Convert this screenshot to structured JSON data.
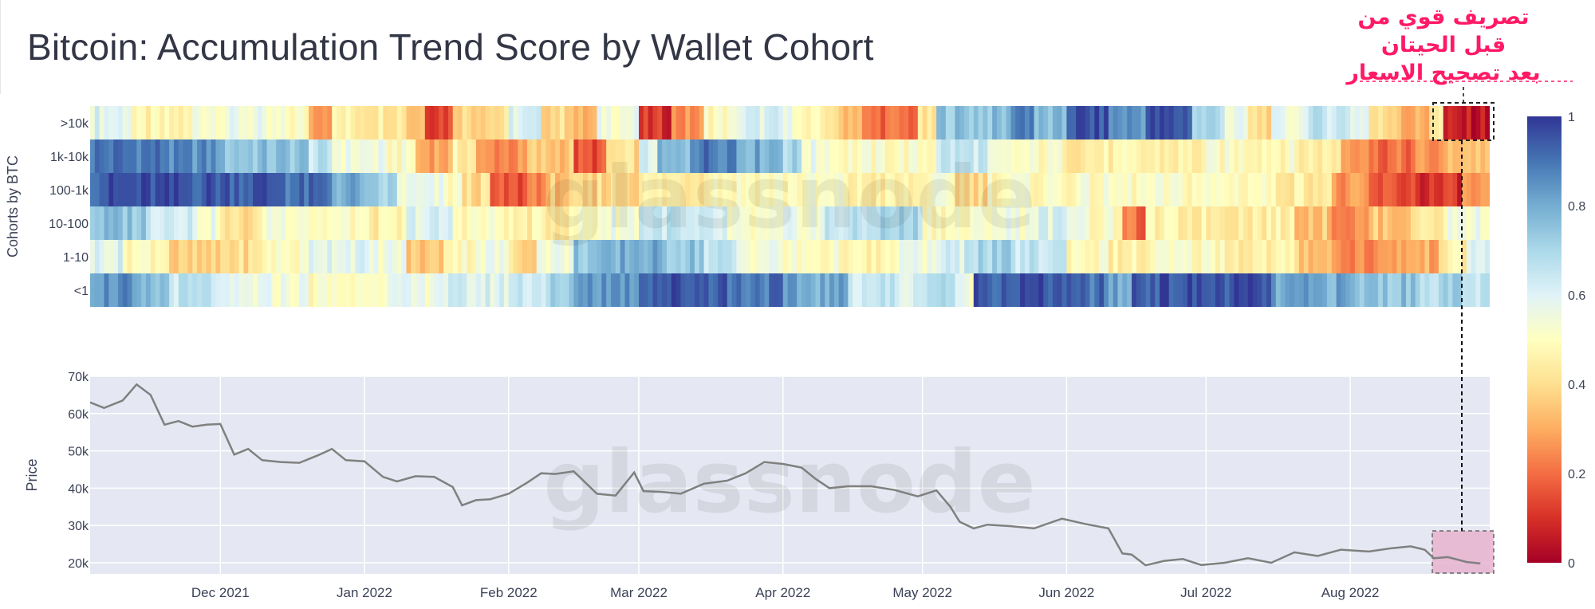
{
  "title": "Bitcoin: Accumulation Trend Score by Wallet Cohort",
  "annotation_lines": [
    "تصريف قوي من",
    "قبل الحيتان",
    "بعد تصحيح الاسعار"
  ],
  "watermark": "glassnode",
  "colors": {
    "annotation": "#ff1a66",
    "price_line": "#808080",
    "plot_bg": "#e5e8f2",
    "highlight_fill": "#e8b3cf",
    "colorscale": [
      "#a50026",
      "#d73027",
      "#f46d43",
      "#fdae61",
      "#fee090",
      "#ffffbf",
      "#e0f3f8",
      "#abd9e9",
      "#74add1",
      "#4575b4",
      "#313695"
    ]
  },
  "chart_data": [
    {
      "type": "heatmap",
      "ylabel": "Cohorts by BTC",
      "rows": [
        ">10k",
        "1k-10k",
        "100-1k",
        "10-100",
        "1-10",
        "<1"
      ],
      "x_range": [
        "2021-11-03",
        "2022-08-31"
      ],
      "colorbar": {
        "range": [
          0,
          1
        ],
        "ticks": [
          0,
          0.2,
          0.4,
          0.6,
          0.8,
          1
        ]
      },
      "segments": {
        ">10k": [
          [
            "2021-11-03",
            0.6
          ],
          [
            "2021-11-12",
            0.45
          ],
          [
            "2021-11-25",
            0.55
          ],
          [
            "2021-12-10",
            0.5
          ],
          [
            "2021-12-20",
            0.3
          ],
          [
            "2021-12-25",
            0.45
          ],
          [
            "2022-01-10",
            0.35
          ],
          [
            "2022-01-14",
            0.15
          ],
          [
            "2022-01-20",
            0.4
          ],
          [
            "2022-02-01",
            0.6
          ],
          [
            "2022-02-08",
            0.4
          ],
          [
            "2022-02-15",
            0.3
          ],
          [
            "2022-02-20",
            0.55
          ],
          [
            "2022-03-01",
            0.1
          ],
          [
            "2022-03-08",
            0.25
          ],
          [
            "2022-03-15",
            0.5
          ],
          [
            "2022-03-22",
            0.6
          ],
          [
            "2022-04-01",
            0.55
          ],
          [
            "2022-04-05",
            0.45
          ],
          [
            "2022-04-12",
            0.35
          ],
          [
            "2022-04-18",
            0.2
          ],
          [
            "2022-04-30",
            0.4
          ],
          [
            "2022-05-04",
            0.75
          ],
          [
            "2022-05-20",
            0.9
          ],
          [
            "2022-05-25",
            0.75
          ],
          [
            "2022-06-01",
            0.95
          ],
          [
            "2022-06-10",
            0.85
          ],
          [
            "2022-06-18",
            0.95
          ],
          [
            "2022-06-28",
            0.7
          ],
          [
            "2022-07-05",
            0.55
          ],
          [
            "2022-07-10",
            0.4
          ],
          [
            "2022-07-15",
            0.55
          ],
          [
            "2022-07-22",
            0.65
          ],
          [
            "2022-08-01",
            0.6
          ],
          [
            "2022-08-05",
            0.4
          ],
          [
            "2022-08-12",
            0.3
          ],
          [
            "2022-08-18",
            0.45
          ],
          [
            "2022-08-21",
            0.05
          ]
        ],
        "1k-10k": [
          [
            "2021-11-03",
            0.9
          ],
          [
            "2021-11-20",
            0.85
          ],
          [
            "2021-12-01",
            0.75
          ],
          [
            "2021-12-20",
            0.65
          ],
          [
            "2021-12-25",
            0.55
          ],
          [
            "2022-01-05",
            0.5
          ],
          [
            "2022-01-12",
            0.3
          ],
          [
            "2022-01-20",
            0.45
          ],
          [
            "2022-01-25",
            0.25
          ],
          [
            "2022-02-05",
            0.35
          ],
          [
            "2022-02-15",
            0.15
          ],
          [
            "2022-02-22",
            0.4
          ],
          [
            "2022-03-01",
            0.6
          ],
          [
            "2022-03-05",
            0.75
          ],
          [
            "2022-03-12",
            0.9
          ],
          [
            "2022-03-22",
            0.8
          ],
          [
            "2022-04-01",
            0.7
          ],
          [
            "2022-04-05",
            0.55
          ],
          [
            "2022-04-12",
            0.5
          ],
          [
            "2022-05-04",
            0.65
          ],
          [
            "2022-05-15",
            0.5
          ],
          [
            "2022-06-01",
            0.45
          ],
          [
            "2022-07-01",
            0.5
          ],
          [
            "2022-07-20",
            0.45
          ],
          [
            "2022-07-30",
            0.3
          ],
          [
            "2022-08-05",
            0.2
          ],
          [
            "2022-08-15",
            0.25
          ],
          [
            "2022-08-22",
            0.35
          ]
        ],
        "100-1k": [
          [
            "2021-11-03",
            0.95
          ],
          [
            "2021-12-01",
            0.95
          ],
          [
            "2021-12-15",
            0.9
          ],
          [
            "2021-12-25",
            0.8
          ],
          [
            "2022-01-01",
            0.7
          ],
          [
            "2022-01-08",
            0.55
          ],
          [
            "2022-01-18",
            0.5
          ],
          [
            "2022-01-22",
            0.4
          ],
          [
            "2022-01-28",
            0.15
          ],
          [
            "2022-02-05",
            0.25
          ],
          [
            "2022-02-10",
            0.35
          ],
          [
            "2022-02-20",
            0.4
          ],
          [
            "2022-03-01",
            0.45
          ],
          [
            "2022-03-15",
            0.5
          ],
          [
            "2022-04-01",
            0.5
          ],
          [
            "2022-04-15",
            0.45
          ],
          [
            "2022-05-01",
            0.5
          ],
          [
            "2022-05-08",
            0.4
          ],
          [
            "2022-05-15",
            0.5
          ],
          [
            "2022-06-01",
            0.5
          ],
          [
            "2022-07-01",
            0.5
          ],
          [
            "2022-07-15",
            0.45
          ],
          [
            "2022-07-28",
            0.25
          ],
          [
            "2022-08-05",
            0.15
          ],
          [
            "2022-08-15",
            0.1
          ],
          [
            "2022-08-25",
            0.25
          ]
        ],
        "10-100": [
          [
            "2021-11-03",
            0.75
          ],
          [
            "2021-11-15",
            0.65
          ],
          [
            "2021-11-25",
            0.55
          ],
          [
            "2021-12-01",
            0.4
          ],
          [
            "2021-12-10",
            0.55
          ],
          [
            "2021-12-20",
            0.5
          ],
          [
            "2022-01-01",
            0.45
          ],
          [
            "2022-01-10",
            0.6
          ],
          [
            "2022-01-20",
            0.5
          ],
          [
            "2022-02-01",
            0.45
          ],
          [
            "2022-02-15",
            0.5
          ],
          [
            "2022-02-20",
            0.55
          ],
          [
            "2022-03-01",
            0.65
          ],
          [
            "2022-03-10",
            0.6
          ],
          [
            "2022-03-20",
            0.5
          ],
          [
            "2022-04-01",
            0.55
          ],
          [
            "2022-04-10",
            0.65
          ],
          [
            "2022-04-20",
            0.7
          ],
          [
            "2022-05-01",
            0.5
          ],
          [
            "2022-05-15",
            0.55
          ],
          [
            "2022-05-25",
            0.6
          ],
          [
            "2022-06-05",
            0.5
          ],
          [
            "2022-06-13",
            0.2
          ],
          [
            "2022-06-18",
            0.45
          ],
          [
            "2022-07-01",
            0.45
          ],
          [
            "2022-07-20",
            0.35
          ],
          [
            "2022-07-28",
            0.25
          ],
          [
            "2022-08-05",
            0.35
          ],
          [
            "2022-08-15",
            0.45
          ],
          [
            "2022-08-22",
            0.55
          ]
        ],
        "1-10": [
          [
            "2021-11-03",
            0.6
          ],
          [
            "2021-11-10",
            0.5
          ],
          [
            "2021-11-20",
            0.35
          ],
          [
            "2021-12-01",
            0.4
          ],
          [
            "2021-12-10",
            0.5
          ],
          [
            "2021-12-20",
            0.6
          ],
          [
            "2022-01-01",
            0.55
          ],
          [
            "2022-01-10",
            0.35
          ],
          [
            "2022-01-18",
            0.5
          ],
          [
            "2022-01-25",
            0.55
          ],
          [
            "2022-02-01",
            0.4
          ],
          [
            "2022-02-07",
            0.55
          ],
          [
            "2022-02-15",
            0.75
          ],
          [
            "2022-02-25",
            0.8
          ],
          [
            "2022-03-05",
            0.75
          ],
          [
            "2022-03-15",
            0.65
          ],
          [
            "2022-03-22",
            0.55
          ],
          [
            "2022-04-01",
            0.5
          ],
          [
            "2022-04-15",
            0.45
          ],
          [
            "2022-04-25",
            0.55
          ],
          [
            "2022-05-04",
            0.6
          ],
          [
            "2022-05-10",
            0.7
          ],
          [
            "2022-05-20",
            0.65
          ],
          [
            "2022-06-01",
            0.5
          ],
          [
            "2022-06-10",
            0.45
          ],
          [
            "2022-06-20",
            0.5
          ],
          [
            "2022-07-05",
            0.45
          ],
          [
            "2022-07-20",
            0.35
          ],
          [
            "2022-07-28",
            0.25
          ],
          [
            "2022-08-10",
            0.3
          ],
          [
            "2022-08-20",
            0.45
          ],
          [
            "2022-08-26",
            0.6
          ]
        ],
        "<1": [
          [
            "2021-11-03",
            0.85
          ],
          [
            "2021-11-12",
            0.75
          ],
          [
            "2021-11-20",
            0.65
          ],
          [
            "2021-12-01",
            0.55
          ],
          [
            "2021-12-20",
            0.5
          ],
          [
            "2022-01-01",
            0.55
          ],
          [
            "2022-01-15",
            0.6
          ],
          [
            "2022-02-01",
            0.65
          ],
          [
            "2022-02-10",
            0.7
          ],
          [
            "2022-02-15",
            0.85
          ],
          [
            "2022-03-01",
            0.95
          ],
          [
            "2022-03-20",
            0.9
          ],
          [
            "2022-04-01",
            0.8
          ],
          [
            "2022-04-15",
            0.65
          ],
          [
            "2022-04-25",
            0.6
          ],
          [
            "2022-05-01",
            0.7
          ],
          [
            "2022-05-08",
            0.55
          ],
          [
            "2022-05-12",
            0.95
          ],
          [
            "2022-06-01",
            0.9
          ],
          [
            "2022-06-10",
            0.8
          ],
          [
            "2022-06-15",
            0.95
          ],
          [
            "2022-07-01",
            0.95
          ],
          [
            "2022-07-15",
            0.8
          ],
          [
            "2022-08-01",
            0.75
          ],
          [
            "2022-08-15",
            0.7
          ],
          [
            "2022-08-25",
            0.65
          ]
        ]
      }
    },
    {
      "type": "line",
      "ylabel": "Price",
      "yticks": [
        "20k",
        "30k",
        "40k",
        "50k",
        "60k",
        "70k"
      ],
      "ylim": [
        17000,
        70000
      ],
      "xticks": [
        {
          "date": "2021-12-01",
          "label": "Dec 2021"
        },
        {
          "date": "2022-01-01",
          "label": "Jan 2022"
        },
        {
          "date": "2022-02-01",
          "label": "Feb 2022"
        },
        {
          "date": "2022-03-01",
          "label": "Mar 2022"
        },
        {
          "date": "2022-04-01",
          "label": "Apr 2022"
        },
        {
          "date": "2022-05-01",
          "label": "May 2022"
        },
        {
          "date": "2022-06-01",
          "label": "Jun 2022"
        },
        {
          "date": "2022-07-01",
          "label": "Jul 2022"
        },
        {
          "date": "2022-08-01",
          "label": "Aug 2022"
        }
      ],
      "series": [
        {
          "x": [
            "2021-11-03",
            "2021-11-06",
            "2021-11-10",
            "2021-11-13",
            "2021-11-16",
            "2021-11-19",
            "2021-11-22",
            "2021-11-25",
            "2021-11-28",
            "2021-12-01",
            "2021-12-04",
            "2021-12-07",
            "2021-12-10",
            "2021-12-14",
            "2021-12-18",
            "2021-12-22",
            "2021-12-25",
            "2021-12-28",
            "2022-01-01",
            "2022-01-05",
            "2022-01-08",
            "2022-01-12",
            "2022-01-16",
            "2022-01-20",
            "2022-01-22",
            "2022-01-25",
            "2022-01-28",
            "2022-02-01",
            "2022-02-05",
            "2022-02-08",
            "2022-02-11",
            "2022-02-15",
            "2022-02-20",
            "2022-02-24",
            "2022-02-28",
            "2022-03-02",
            "2022-03-06",
            "2022-03-10",
            "2022-03-15",
            "2022-03-20",
            "2022-03-24",
            "2022-03-28",
            "2022-04-01",
            "2022-04-05",
            "2022-04-08",
            "2022-04-11",
            "2022-04-15",
            "2022-04-20",
            "2022-04-25",
            "2022-04-30",
            "2022-05-04",
            "2022-05-07",
            "2022-05-09",
            "2022-05-12",
            "2022-05-15",
            "2022-05-20",
            "2022-05-25",
            "2022-05-31",
            "2022-06-05",
            "2022-06-10",
            "2022-06-13",
            "2022-06-15",
            "2022-06-18",
            "2022-06-22",
            "2022-06-26",
            "2022-06-30",
            "2022-07-05",
            "2022-07-10",
            "2022-07-15",
            "2022-07-20",
            "2022-07-25",
            "2022-07-30",
            "2022-08-05",
            "2022-08-10",
            "2022-08-14",
            "2022-08-17",
            "2022-08-19",
            "2022-08-22",
            "2022-08-26",
            "2022-08-29"
          ],
          "y": [
            63000,
            61500,
            63500,
            67800,
            65000,
            57000,
            58000,
            56500,
            57000,
            57200,
            49000,
            50500,
            47500,
            47000,
            46800,
            48800,
            50500,
            47500,
            47200,
            43000,
            41800,
            43200,
            43000,
            40300,
            35400,
            36800,
            37000,
            38500,
            41500,
            44000,
            43800,
            44500,
            38500,
            38000,
            44200,
            39200,
            39000,
            38500,
            41200,
            42000,
            44000,
            47000,
            46500,
            45500,
            42500,
            40000,
            40500,
            40500,
            39500,
            37800,
            39400,
            35000,
            31000,
            29200,
            30200,
            29800,
            29200,
            31800,
            30400,
            29200,
            22500,
            22200,
            19300,
            20500,
            21000,
            19400,
            20000,
            21200,
            20000,
            22800,
            21800,
            23500,
            23000,
            23900,
            24400,
            23500,
            21200,
            21500,
            20200,
            19800
          ]
        }
      ]
    }
  ]
}
